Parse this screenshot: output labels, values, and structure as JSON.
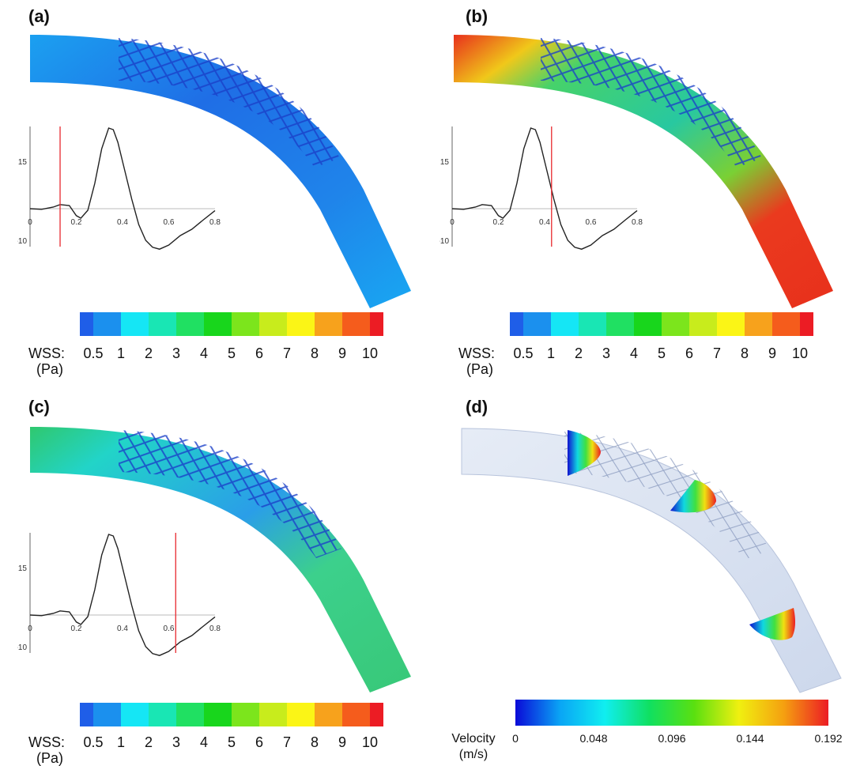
{
  "panels": [
    {
      "label": "(a)",
      "colormap": "low",
      "waveform": {
        "y_ticks": [
          "15",
          "-10"
        ],
        "x_ticks": [
          "0",
          "0.2",
          "0.4",
          "0.6",
          "0.8"
        ],
        "marker_time": 0.13
      }
    },
    {
      "label": "(b)",
      "colormap": "high",
      "waveform": {
        "y_ticks": [
          "15",
          "-10"
        ],
        "x_ticks": [
          "0",
          "0.2",
          "0.4",
          "0.6",
          "0.8"
        ],
        "marker_time": 0.43
      }
    },
    {
      "label": "(c)",
      "colormap": "mid",
      "waveform": {
        "y_ticks": [
          "15",
          "-10"
        ],
        "x_ticks": [
          "0",
          "0.2",
          "0.4",
          "0.6",
          "0.8"
        ],
        "marker_time": 0.63
      }
    },
    {
      "label": "(d)",
      "colormap": "velocity"
    }
  ],
  "waveform_shape": {
    "t": [
      0,
      0.05,
      0.1,
      0.13,
      0.17,
      0.2,
      0.22,
      0.25,
      0.28,
      0.31,
      0.34,
      0.36,
      0.38,
      0.41,
      0.44,
      0.47,
      0.5,
      0.53,
      0.56,
      0.6,
      0.65,
      0.7,
      0.75,
      0.8
    ],
    "v": [
      0,
      -0.2,
      0.5,
      1.3,
      1.0,
      -2.2,
      -3.0,
      -0.5,
      8,
      19,
      25.5,
      25,
      21,
      12,
      3,
      -5,
      -10,
      -12.2,
      -12.8,
      -11.5,
      -8.5,
      -6.5,
      -3.5,
      -0.6
    ],
    "t_range": [
      0,
      0.8
    ],
    "v_range": [
      -12,
      26
    ]
  },
  "wss_colorbar": {
    "label_line1": "WSS:",
    "label_line2": "(Pa)",
    "colors": [
      "#1f5ee8",
      "#1b90ee",
      "#15e6f5",
      "#19e6b4",
      "#20e062",
      "#18d61c",
      "#7ce51c",
      "#c8ec1c",
      "#fbf516",
      "#f7a21c",
      "#f55c1c",
      "#ec1c24"
    ],
    "ticks": [
      "0.5",
      "1",
      "2",
      "3",
      "4",
      "5",
      "6",
      "7",
      "8",
      "9",
      "10"
    ]
  },
  "velocity_colorbar": {
    "label_line1": "Velocity",
    "label_line2": "(m/s)",
    "gradient": [
      "#0a0ad8",
      "#0aa5f5",
      "#10eef0",
      "#10e060",
      "#5ae010",
      "#f0f010",
      "#f5a010",
      "#ec1c24"
    ],
    "ticks": [
      "0",
      "0.048",
      "0.096",
      "0.144",
      "0.192"
    ]
  }
}
